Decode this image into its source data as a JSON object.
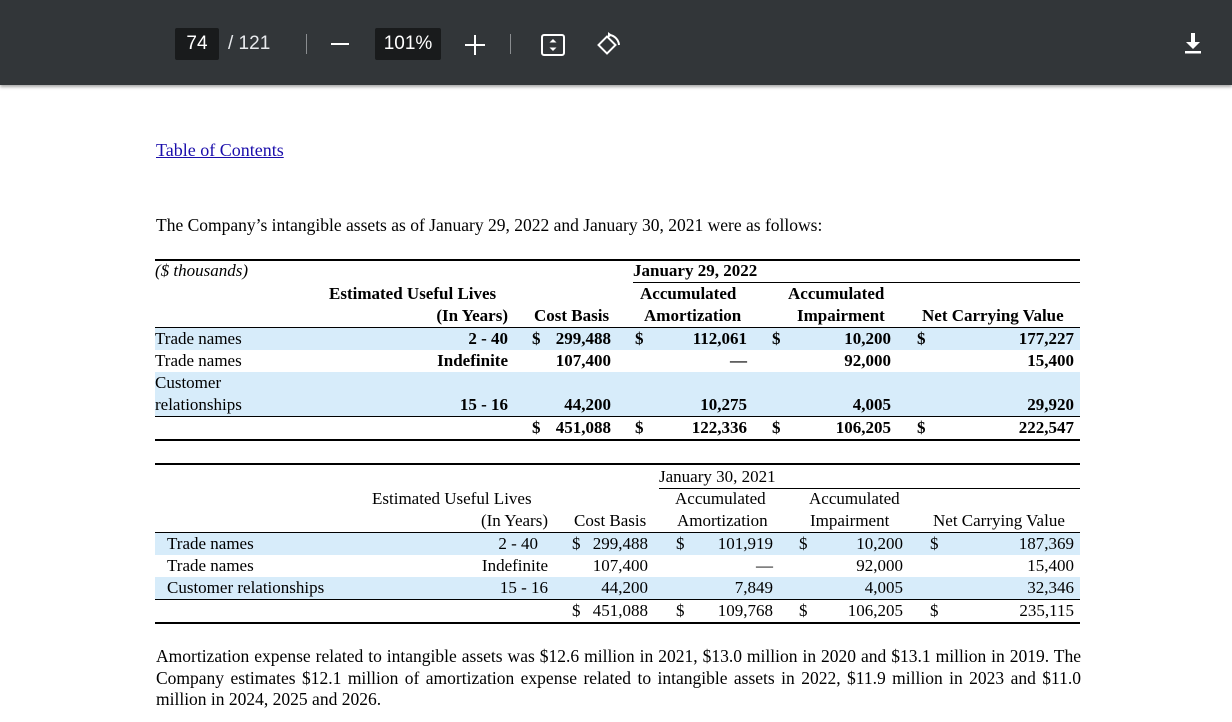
{
  "toolbar": {
    "page_current": "74",
    "page_total": "/ 121",
    "zoom": "101%",
    "icons": [
      "zoom-out-icon",
      "zoom-in-icon",
      "fit-page-icon",
      "rotate-icon",
      "download-icon"
    ]
  },
  "doc": {
    "toc_link": "Table of Contents",
    "intro": "The Company’s intangible assets as of January 29, 2022 and January 30, 2021 were as follows:",
    "table2022": {
      "unit": "($ thousands)",
      "date": "January 29, 2022",
      "h_lives_1": "Estimated Useful Lives",
      "h_lives_2": "(In Years)",
      "h_cost": "Cost Basis",
      "h_amort_1": "Accumulated",
      "h_amort_2": "Amortization",
      "h_imp_1": "Accumulated",
      "h_imp_2": "Impairment",
      "h_net": "Net Carrying Value",
      "rows": [
        {
          "name": "Trade names",
          "lives": "2 - 40",
          "cost_sign": "$",
          "cost": "299,488",
          "amort_sign": "$",
          "amort": "112,061",
          "imp_sign": "$",
          "imp": "10,200",
          "net_sign": "$",
          "net": "177,227"
        },
        {
          "name": "Trade names",
          "lives": "Indefinite",
          "cost": "107,400",
          "amort": "—",
          "imp": "92,000",
          "net": "15,400"
        },
        {
          "name_1": "Customer",
          "name_2": "relationships",
          "lives": "15 - 16",
          "cost": "44,200",
          "amort": "10,275",
          "imp": "4,005",
          "net": "29,920"
        }
      ],
      "total": {
        "cost_sign": "$",
        "cost": "451,088",
        "amort_sign": "$",
        "amort": "122,336",
        "imp_sign": "$",
        "imp": "106,205",
        "net_sign": "$",
        "net": "222,547"
      }
    },
    "table2021": {
      "date": "January 30, 2021",
      "h_lives_1": "Estimated Useful Lives",
      "h_lives_2": "(In Years)",
      "h_cost": "Cost Basis",
      "h_amort_1": "Accumulated",
      "h_amort_2": "Amortization",
      "h_imp_1": "Accumulated",
      "h_imp_2": "Impairment",
      "h_net": "Net Carrying Value",
      "rows": [
        {
          "name": "Trade names",
          "lives": "2 - 40",
          "cost_sign": "$",
          "cost": "299,488",
          "amort_sign": "$",
          "amort": "101,919",
          "imp_sign": "$",
          "imp": "10,200",
          "net_sign": "$",
          "net": "187,369"
        },
        {
          "name": "Trade names",
          "lives": "Indefinite",
          "cost": "107,400",
          "amort": "—",
          "imp": "92,000",
          "net": "15,400"
        },
        {
          "name": "Customer relationships",
          "lives": "15 - 16",
          "cost": "44,200",
          "amort": "7,849",
          "imp": "4,005",
          "net": "32,346"
        }
      ],
      "total": {
        "cost_sign": "$",
        "cost": "451,088",
        "amort_sign": "$",
        "amort": "109,768",
        "imp_sign": "$",
        "imp": "106,205",
        "net_sign": "$",
        "net": "235,115"
      }
    },
    "paragraph": "Amortization expense related to intangible assets was $12.6 million in 2021, $13.0 million in 2020 and $13.1 million in 2019. The Company estimates $12.1 million of amortization expense related to intangible assets in 2022, $11.9 million in 2023 and $11.0 million in 2024, 2025 and 2026."
  }
}
